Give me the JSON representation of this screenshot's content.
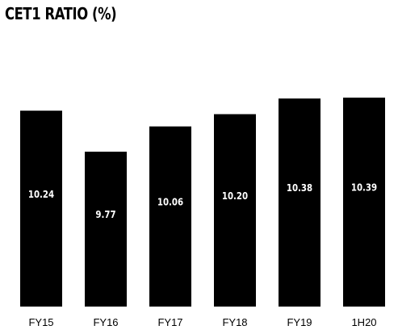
{
  "chart_data": {
    "type": "bar",
    "title": "CET1 RATIO (%)",
    "categories": [
      "FY15",
      "FY16",
      "FY17",
      "FY18",
      "FY19",
      "1H20"
    ],
    "values": [
      10.24,
      9.77,
      10.06,
      10.2,
      10.38,
      10.39
    ],
    "value_labels": [
      "10.24",
      "9.77",
      "10.06",
      "10.20",
      "10.38",
      "10.39"
    ],
    "xlabel": "",
    "ylabel": "",
    "grid": false,
    "legend": "none",
    "bar_color": "#000000",
    "label_color": "#ffffff"
  }
}
